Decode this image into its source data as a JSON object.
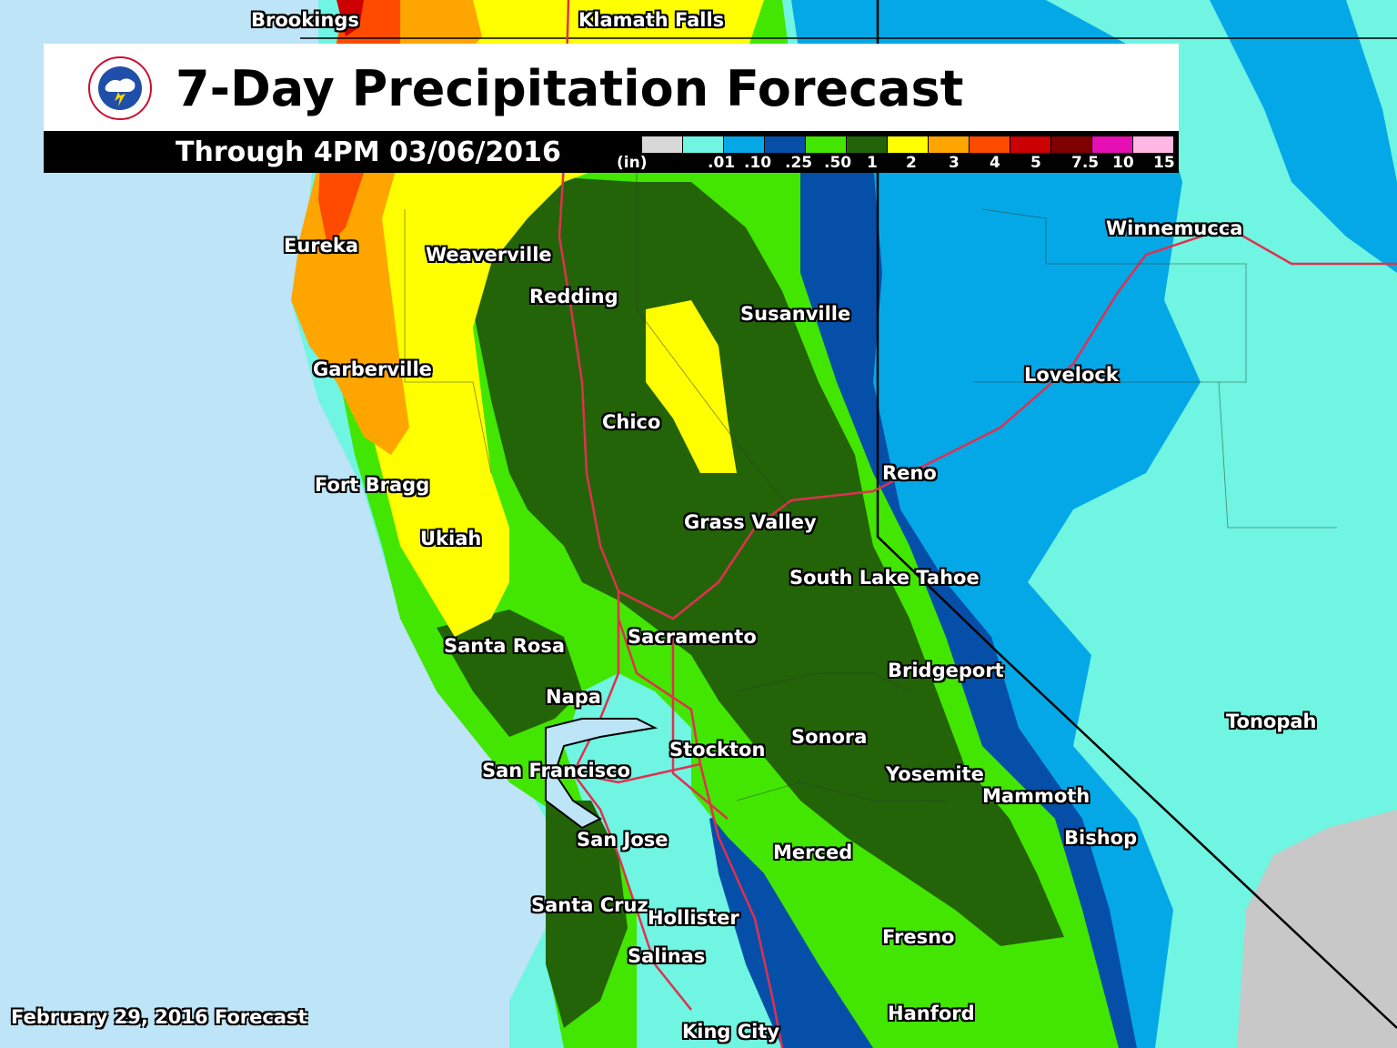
{
  "header": {
    "title": "7-Day Precipitation Forecast",
    "valid_through": "Through 4PM 03/06/2016"
  },
  "legend": {
    "unit": "(in)",
    "labels": [
      ".01",
      ".10",
      ".25",
      ".50",
      "1",
      "2",
      "3",
      "4",
      "5",
      "7.5",
      "10",
      "15"
    ],
    "colors": [
      "#d8d8d8",
      "#6ff5e1",
      "#05a8e6",
      "#064fa8",
      "#42e600",
      "#236408",
      "#ffff00",
      "#ffa500",
      "#ff4b00",
      "#cc0000",
      "#7f0000",
      "#e60fb4",
      "#ffb8e3"
    ]
  },
  "footer": {
    "issued": "February 29, 2016 Forecast"
  },
  "map_colors": {
    "ocean": "#bde4f7",
    "no_data": "#c8c8c8",
    "road": "#e03050",
    "state_border": "#000000"
  },
  "cities": [
    {
      "name": "Brookings"
    },
    {
      "name": "Klamath Falls"
    },
    {
      "name": "Eureka"
    },
    {
      "name": "Weaverville"
    },
    {
      "name": "Redding"
    },
    {
      "name": "Susanville"
    },
    {
      "name": "Winnemucca"
    },
    {
      "name": "Lovelock"
    },
    {
      "name": "Garberville"
    },
    {
      "name": "Chico"
    },
    {
      "name": "Reno"
    },
    {
      "name": "Fort Bragg"
    },
    {
      "name": "Grass Valley"
    },
    {
      "name": "Ukiah"
    },
    {
      "name": "South Lake Tahoe"
    },
    {
      "name": "Sacramento"
    },
    {
      "name": "Santa Rosa"
    },
    {
      "name": "Bridgeport"
    },
    {
      "name": "Napa"
    },
    {
      "name": "Tonopah"
    },
    {
      "name": "Sonora"
    },
    {
      "name": "Stockton"
    },
    {
      "name": "San Francisco"
    },
    {
      "name": "Yosemite"
    },
    {
      "name": "Mammoth"
    },
    {
      "name": "Bishop"
    },
    {
      "name": "San Jose"
    },
    {
      "name": "Merced"
    },
    {
      "name": "Santa Cruz"
    },
    {
      "name": "Hollister"
    },
    {
      "name": "Fresno"
    },
    {
      "name": "Salinas"
    },
    {
      "name": "Hanford"
    },
    {
      "name": "King City"
    }
  ]
}
